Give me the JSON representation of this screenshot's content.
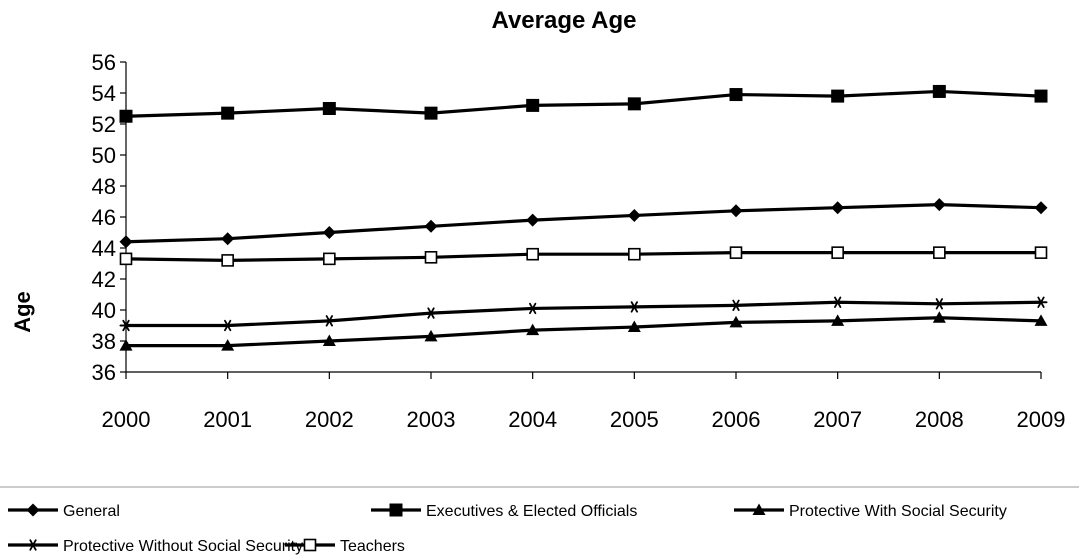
{
  "chart_data": {
    "type": "line",
    "title": "Average Age",
    "xlabel": "",
    "ylabel": "Age",
    "ylim": [
      36,
      56
    ],
    "yticks": [
      36,
      38,
      40,
      42,
      44,
      46,
      48,
      50,
      52,
      54,
      56
    ],
    "grid": false,
    "legend_position": "bottom",
    "x": [
      "2000",
      "2001",
      "2002",
      "2003",
      "2004",
      "2005",
      "2006",
      "2007",
      "2008",
      "2009"
    ],
    "series": [
      {
        "name": "General",
        "marker": "diamond",
        "color": "#000000",
        "values": [
          44.4,
          44.6,
          45.0,
          45.4,
          45.8,
          46.1,
          46.4,
          46.6,
          46.8,
          46.6
        ]
      },
      {
        "name": "Executives & Elected Officials",
        "marker": "square-filled",
        "color": "#000000",
        "values": [
          52.5,
          52.7,
          53.0,
          52.7,
          53.2,
          53.3,
          53.9,
          53.8,
          54.1,
          53.8
        ]
      },
      {
        "name": "Protective With Social Security",
        "marker": "triangle",
        "color": "#000000",
        "values": [
          37.7,
          37.7,
          38.0,
          38.3,
          38.7,
          38.9,
          39.2,
          39.3,
          39.5,
          39.3
        ]
      },
      {
        "name": "Protective Without Social Security",
        "marker": "asterisk",
        "color": "#000000",
        "values": [
          39.0,
          39.0,
          39.3,
          39.8,
          40.1,
          40.2,
          40.3,
          40.5,
          40.4,
          40.5
        ]
      },
      {
        "name": "Teachers",
        "marker": "square-open",
        "color": "#000000",
        "values": [
          43.3,
          43.2,
          43.3,
          43.4,
          43.6,
          43.6,
          43.7,
          43.7,
          43.7,
          43.7
        ]
      }
    ]
  }
}
